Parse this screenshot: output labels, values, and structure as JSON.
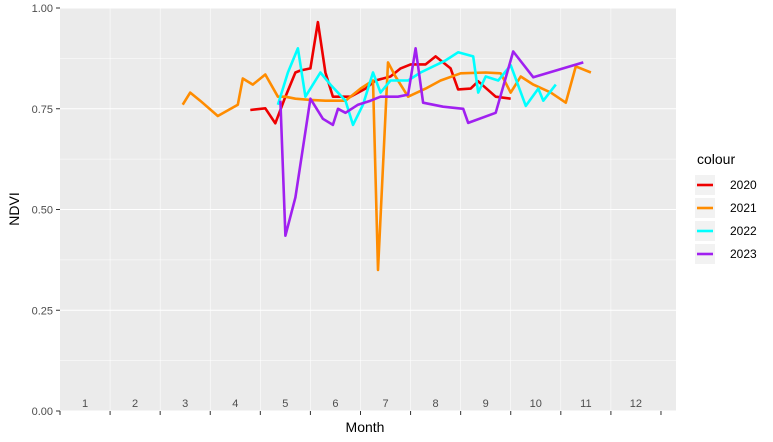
{
  "chart_data": {
    "type": "line",
    "xlabel": "Month",
    "ylabel": "NDVI",
    "xlim": [
      0.5,
      12.8
    ],
    "ylim": [
      0,
      1
    ],
    "x_ticks": [
      1,
      2,
      3,
      4,
      5,
      6,
      7,
      8,
      9,
      10,
      11,
      12
    ],
    "x_tick_labels": [
      "1",
      "2",
      "3",
      "4",
      "5",
      "6",
      "7",
      "8",
      "9",
      "10",
      "11",
      "12"
    ],
    "y_ticks": [
      0,
      0.25,
      0.5,
      0.75,
      1.0
    ],
    "y_tick_labels": [
      "0.00",
      "0.25",
      "0.50",
      "0.75",
      "1.00"
    ],
    "grid": true,
    "legend": {
      "title": "colour",
      "position": "right"
    },
    "series": [
      {
        "name": "2020",
        "color": "#ee0000",
        "points": [
          [
            4.3,
            0.747
          ],
          [
            4.6,
            0.751
          ],
          [
            4.8,
            0.714
          ],
          [
            5.0,
            0.78
          ],
          [
            5.2,
            0.84
          ],
          [
            5.3,
            0.845
          ],
          [
            5.5,
            0.85
          ],
          [
            5.65,
            0.965
          ],
          [
            5.8,
            0.84
          ],
          [
            5.95,
            0.78
          ],
          [
            6.3,
            0.78
          ],
          [
            6.6,
            0.8
          ],
          [
            6.8,
            0.82
          ],
          [
            7.1,
            0.83
          ],
          [
            7.3,
            0.85
          ],
          [
            7.5,
            0.86
          ],
          [
            7.8,
            0.86
          ],
          [
            8.0,
            0.88
          ],
          [
            8.3,
            0.85
          ],
          [
            8.45,
            0.798
          ],
          [
            8.7,
            0.8
          ],
          [
            8.85,
            0.818
          ],
          [
            9.2,
            0.78
          ],
          [
            9.5,
            0.775
          ]
        ]
      },
      {
        "name": "2021",
        "color": "#ff8c00",
        "points": [
          [
            2.95,
            0.76
          ],
          [
            3.1,
            0.79
          ],
          [
            3.3,
            0.77
          ],
          [
            3.65,
            0.732
          ],
          [
            4.05,
            0.76
          ],
          [
            4.15,
            0.825
          ],
          [
            4.35,
            0.81
          ],
          [
            4.6,
            0.835
          ],
          [
            4.85,
            0.78
          ],
          [
            5.0,
            0.78
          ],
          [
            5.2,
            0.775
          ],
          [
            5.5,
            0.772
          ],
          [
            5.8,
            0.77
          ],
          [
            6.2,
            0.77
          ],
          [
            6.5,
            0.8
          ],
          [
            6.75,
            0.82
          ],
          [
            6.85,
            0.35
          ],
          [
            7.05,
            0.865
          ],
          [
            7.2,
            0.83
          ],
          [
            7.45,
            0.78
          ],
          [
            7.8,
            0.8
          ],
          [
            8.1,
            0.82
          ],
          [
            8.5,
            0.838
          ],
          [
            9.0,
            0.84
          ],
          [
            9.3,
            0.838
          ],
          [
            9.5,
            0.79
          ],
          [
            9.7,
            0.83
          ],
          [
            9.95,
            0.81
          ],
          [
            10.3,
            0.79
          ],
          [
            10.6,
            0.765
          ],
          [
            10.8,
            0.855
          ],
          [
            11.1,
            0.84
          ]
        ]
      },
      {
        "name": "2022",
        "color": "#00ffff",
        "points": [
          [
            4.85,
            0.76
          ],
          [
            5.05,
            0.84
          ],
          [
            5.25,
            0.9
          ],
          [
            5.4,
            0.78
          ],
          [
            5.7,
            0.84
          ],
          [
            5.9,
            0.81
          ],
          [
            6.2,
            0.77
          ],
          [
            6.35,
            0.71
          ],
          [
            6.55,
            0.76
          ],
          [
            6.75,
            0.84
          ],
          [
            6.9,
            0.79
          ],
          [
            7.1,
            0.82
          ],
          [
            7.45,
            0.82
          ],
          [
            7.7,
            0.84
          ],
          [
            8.2,
            0.87
          ],
          [
            8.45,
            0.89
          ],
          [
            8.75,
            0.88
          ],
          [
            8.85,
            0.79
          ],
          [
            9.0,
            0.83
          ],
          [
            9.25,
            0.82
          ],
          [
            9.5,
            0.858
          ],
          [
            9.8,
            0.757
          ],
          [
            10.05,
            0.8
          ],
          [
            10.15,
            0.77
          ],
          [
            10.4,
            0.81
          ]
        ]
      },
      {
        "name": "2023",
        "color": "#a020f0",
        "points": [
          [
            4.9,
            0.77
          ],
          [
            5.0,
            0.435
          ],
          [
            5.2,
            0.53
          ],
          [
            5.5,
            0.775
          ],
          [
            5.75,
            0.725
          ],
          [
            5.95,
            0.71
          ],
          [
            6.05,
            0.75
          ],
          [
            6.2,
            0.74
          ],
          [
            6.45,
            0.76
          ],
          [
            6.7,
            0.77
          ],
          [
            6.9,
            0.78
          ],
          [
            7.25,
            0.78
          ],
          [
            7.45,
            0.785
          ],
          [
            7.6,
            0.9
          ],
          [
            7.75,
            0.765
          ],
          [
            8.15,
            0.755
          ],
          [
            8.55,
            0.75
          ],
          [
            8.65,
            0.715
          ],
          [
            9.2,
            0.74
          ],
          [
            9.55,
            0.892
          ],
          [
            9.95,
            0.828
          ],
          [
            10.95,
            0.865
          ]
        ]
      }
    ]
  }
}
